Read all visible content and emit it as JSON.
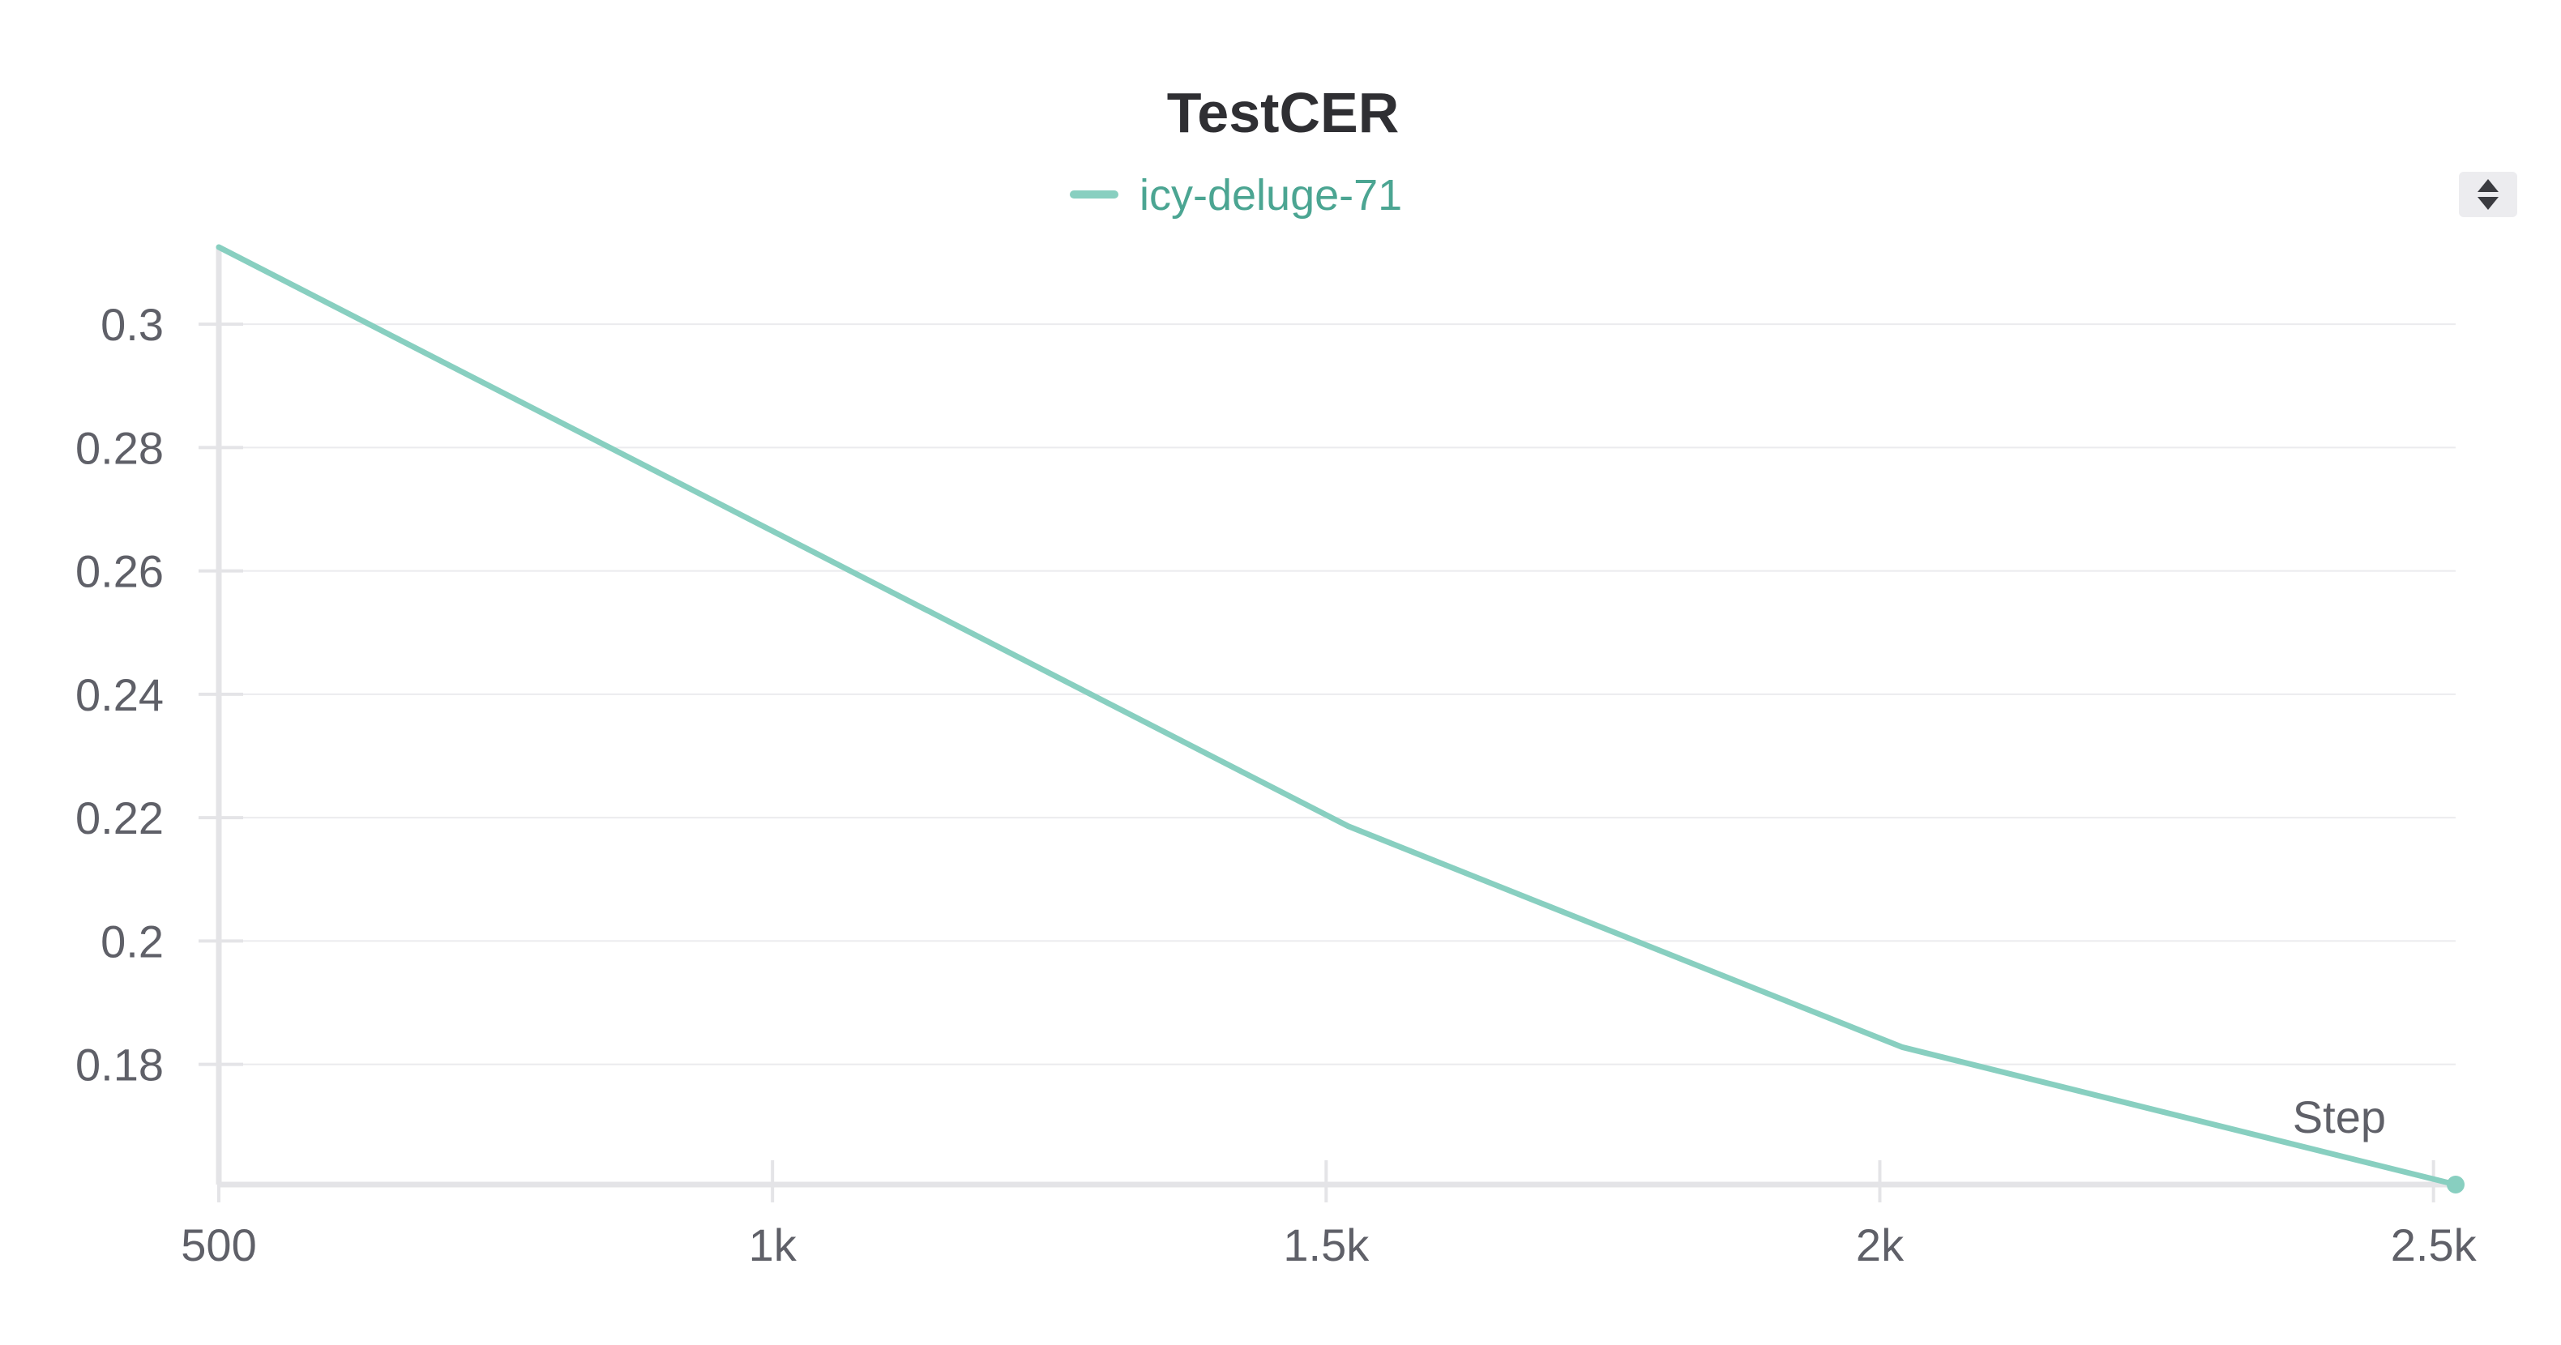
{
  "chart_data": {
    "type": "line",
    "title": "TestCER",
    "xlabel": "Step",
    "ylabel": "",
    "xlim": [
      500,
      2520
    ],
    "ylim": [
      0.1605,
      0.3125
    ],
    "x_ticks": [
      {
        "value": 500,
        "label": "500"
      },
      {
        "value": 1000,
        "label": "1k"
      },
      {
        "value": 1500,
        "label": "1.5k"
      },
      {
        "value": 2000,
        "label": "2k"
      },
      {
        "value": 2500,
        "label": "2.5k"
      }
    ],
    "y_ticks": [
      {
        "value": 0.18,
        "label": "0.18"
      },
      {
        "value": 0.2,
        "label": "0.2"
      },
      {
        "value": 0.22,
        "label": "0.22"
      },
      {
        "value": 0.24,
        "label": "0.24"
      },
      {
        "value": 0.26,
        "label": "0.26"
      },
      {
        "value": 0.28,
        "label": "0.28"
      },
      {
        "value": 0.3,
        "label": "0.3"
      }
    ],
    "grid": true,
    "legend": "top-center",
    "series": [
      {
        "name": "icy-deluge-71",
        "color": "#88cfc0",
        "legend_text_color": "#4ba592",
        "x": [
          500,
          1520,
          2020,
          2520
        ],
        "y": [
          0.3125,
          0.2186,
          0.1828,
          0.1605
        ]
      }
    ]
  },
  "legend_scroll_icon": "up-down-arrows-icon"
}
